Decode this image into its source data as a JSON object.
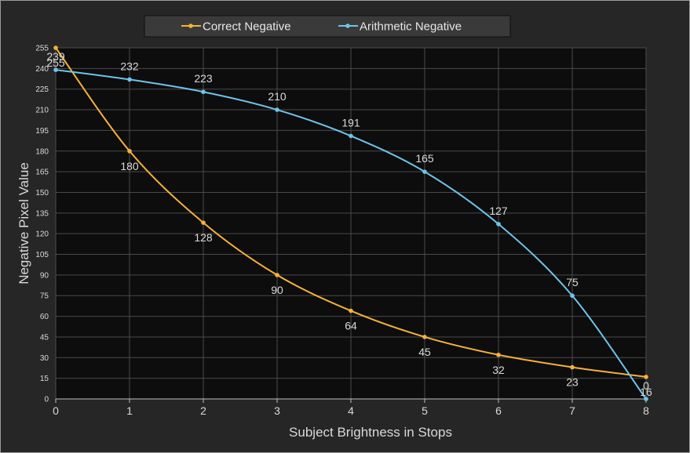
{
  "chart_data": {
    "type": "line",
    "xlabel": "Subject Brightness in Stops",
    "ylabel": "Negative Pixel Value",
    "x": [
      0,
      1,
      2,
      3,
      4,
      5,
      6,
      7,
      8
    ],
    "xlim": [
      0,
      8
    ],
    "ylim": [
      0,
      255
    ],
    "yticks": [
      0,
      15,
      30,
      45,
      60,
      75,
      90,
      105,
      120,
      135,
      150,
      165,
      180,
      195,
      210,
      225,
      240,
      255
    ],
    "grid": true,
    "legend_position": "top",
    "series": [
      {
        "name": "Correct Negative",
        "color": "#f5b13a",
        "values": [
          255,
          180,
          128,
          90,
          64,
          45,
          32,
          23,
          16
        ],
        "labels": [
          "255",
          "180",
          "128",
          "90",
          "64",
          "45",
          "32",
          "23",
          "16"
        ]
      },
      {
        "name": "Arithmetic Negative",
        "color": "#6ec4ea",
        "values": [
          239,
          232,
          223,
          210,
          191,
          165,
          127,
          75,
          0
        ],
        "labels": [
          "239",
          "232",
          "223",
          "210",
          "191",
          "165",
          "127",
          "75",
          "0"
        ]
      }
    ]
  }
}
